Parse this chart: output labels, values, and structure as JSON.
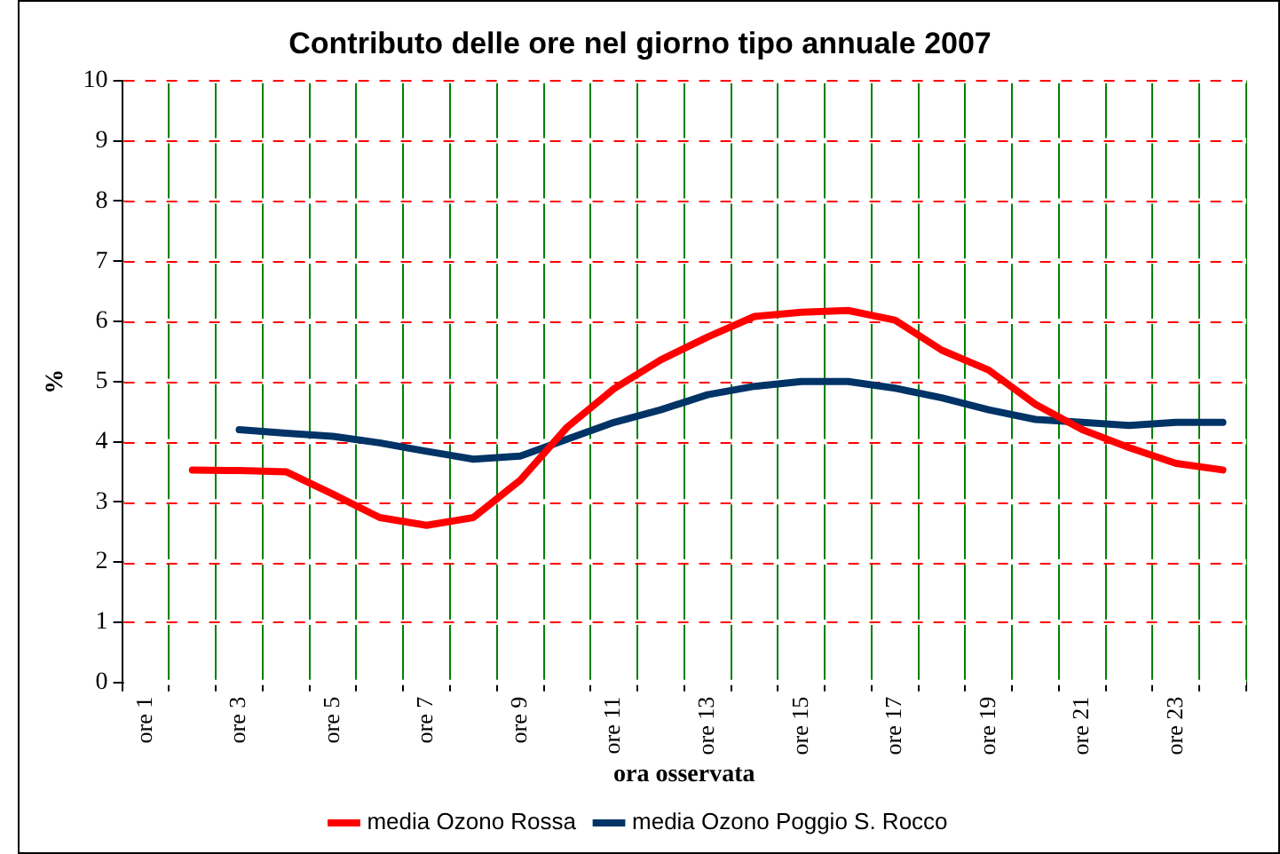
{
  "chart_data": {
    "type": "line",
    "title": "Contributo delle ore nel giorno tipo annuale 2007",
    "xlabel": "ora osservata",
    "ylabel": "%",
    "categories": [
      "ore 1",
      null,
      "ore 3",
      null,
      "ore 5",
      null,
      "ore 7",
      null,
      "ore 9",
      null,
      "ore 11",
      null,
      "ore 13",
      null,
      "ore 15",
      null,
      "ore 17",
      null,
      "ore 19",
      null,
      "ore 21",
      null,
      "ore 23",
      null
    ],
    "series": [
      {
        "name": "media Ozono Rossa",
        "color": "#ff0000",
        "values": [
          null,
          3.53,
          3.52,
          3.5,
          3.13,
          2.74,
          2.61,
          2.74,
          3.36,
          4.24,
          4.88,
          5.36,
          5.74,
          6.08,
          6.15,
          6.18,
          6.02,
          5.52,
          5.19,
          4.62,
          4.2,
          3.9,
          3.64,
          3.53
        ]
      },
      {
        "name": "media Ozono Poggio S. Rocco",
        "color": "#003366",
        "values": [
          null,
          null,
          4.2,
          4.14,
          4.09,
          3.98,
          3.84,
          3.71,
          3.76,
          4.04,
          4.32,
          4.53,
          4.78,
          4.92,
          5.0,
          5.0,
          4.89,
          4.73,
          4.53,
          4.37,
          4.32,
          4.27,
          4.32,
          4.32
        ]
      }
    ],
    "ylim": [
      0,
      10
    ],
    "yticks": [
      0,
      1,
      2,
      3,
      4,
      5,
      6,
      7,
      8,
      9,
      10
    ],
    "grid": true,
    "legend": "bottom",
    "marker": "none",
    "line_style": "solid"
  }
}
